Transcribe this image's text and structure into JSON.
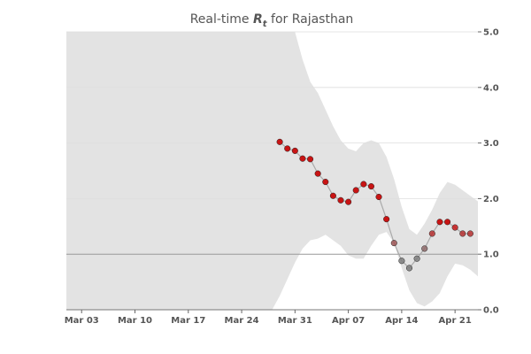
{
  "chart_data": {
    "type": "scatter",
    "title": {
      "prefix": "Real-time ",
      "symbol": "R",
      "subscript": "t",
      "suffix": " for Rajasthan"
    },
    "xlabel": "",
    "ylabel": "",
    "x_start": "2020-03-01",
    "x_end": "2020-04-24",
    "ylim": [
      0.0,
      5.0
    ],
    "x_ticks": [
      {
        "date": "2020-03-03",
        "label": "Mar 03"
      },
      {
        "date": "2020-03-10",
        "label": "Mar 10"
      },
      {
        "date": "2020-03-17",
        "label": "Mar 17"
      },
      {
        "date": "2020-03-24",
        "label": "Mar 24"
      },
      {
        "date": "2020-03-31",
        "label": "Mar 31"
      },
      {
        "date": "2020-04-07",
        "label": "Apr 07"
      },
      {
        "date": "2020-04-14",
        "label": "Apr 14"
      },
      {
        "date": "2020-04-21",
        "label": "Apr 21"
      }
    ],
    "y_ticks": [
      {
        "value": 0.0,
        "label": "0.0"
      },
      {
        "value": 1.0,
        "label": "1.0"
      },
      {
        "value": 2.0,
        "label": "2.0"
      },
      {
        "value": 3.0,
        "label": "3.0"
      },
      {
        "value": 4.0,
        "label": "4.0"
      },
      {
        "value": 5.0,
        "label": "5.0"
      }
    ],
    "reference_line": 1.0,
    "grid": "horizontal",
    "y_axis_position": "right",
    "colors": {
      "band": "#e3e3e3",
      "line": "#aaaaaa",
      "high": "#c81414",
      "neutral": "#808080",
      "low": "#7a7a7a",
      "grid": "#dedede",
      "reference": "#999999"
    },
    "band": {
      "dates": [
        "2020-03-01",
        "2020-03-26",
        "2020-03-27",
        "2020-03-28",
        "2020-03-29",
        "2020-03-30",
        "2020-03-31",
        "2020-04-01",
        "2020-04-02",
        "2020-04-03",
        "2020-04-04",
        "2020-04-05",
        "2020-04-06",
        "2020-04-07",
        "2020-04-08",
        "2020-04-09",
        "2020-04-10",
        "2020-04-11",
        "2020-04-12",
        "2020-04-13",
        "2020-04-14",
        "2020-04-15",
        "2020-04-16",
        "2020-04-17",
        "2020-04-18",
        "2020-04-19",
        "2020-04-20",
        "2020-04-21",
        "2020-04-22",
        "2020-04-23",
        "2020-04-24"
      ],
      "upper": [
        5.0,
        5.0,
        5.0,
        5.0,
        5.0,
        5.0,
        5.0,
        4.5,
        4.1,
        3.9,
        3.6,
        3.3,
        3.05,
        2.9,
        2.85,
        3.0,
        3.05,
        3.0,
        2.75,
        2.35,
        1.85,
        1.45,
        1.35,
        1.55,
        1.8,
        2.1,
        2.3,
        2.25,
        2.15,
        2.05,
        1.95
      ],
      "lower": [
        0.0,
        0.0,
        0.0,
        0.0,
        0.25,
        0.55,
        0.85,
        1.1,
        1.25,
        1.28,
        1.35,
        1.25,
        1.15,
        0.98,
        0.92,
        0.92,
        1.15,
        1.35,
        1.4,
        1.2,
        0.75,
        0.35,
        0.12,
        0.06,
        0.15,
        0.3,
        0.6,
        0.83,
        0.8,
        0.72,
        0.6
      ]
    },
    "series": [
      {
        "x": [
          "2020-03-29",
          "2020-03-30",
          "2020-03-31",
          "2020-04-01",
          "2020-04-02",
          "2020-04-03",
          "2020-04-04",
          "2020-04-05",
          "2020-04-06",
          "2020-04-07",
          "2020-04-08",
          "2020-04-09",
          "2020-04-10",
          "2020-04-11",
          "2020-04-12",
          "2020-04-13",
          "2020-04-14",
          "2020-04-15",
          "2020-04-16",
          "2020-04-17",
          "2020-04-18",
          "2020-04-19",
          "2020-04-20",
          "2020-04-21",
          "2020-04-22",
          "2020-04-23"
        ],
        "y": [
          3.02,
          2.9,
          2.86,
          2.72,
          2.71,
          2.45,
          2.3,
          2.05,
          1.97,
          1.94,
          2.15,
          2.26,
          2.22,
          2.03,
          1.63,
          1.2,
          0.88,
          0.75,
          0.92,
          1.1,
          1.37,
          1.58,
          1.58,
          1.48,
          1.37,
          1.37
        ]
      }
    ]
  }
}
